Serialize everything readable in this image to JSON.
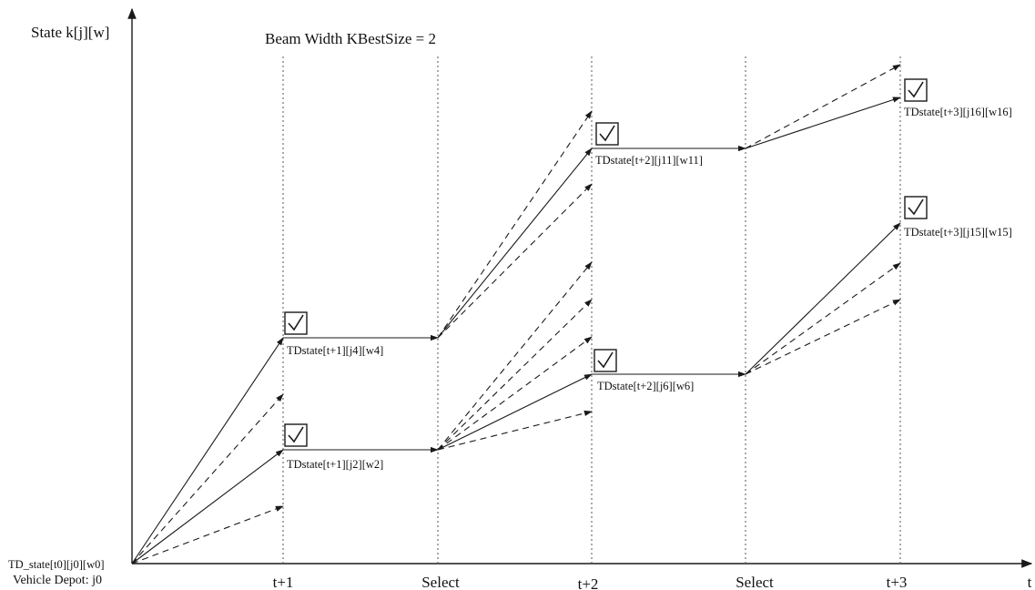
{
  "axes": {
    "y_label": "State k[j][w]",
    "x_label": "t",
    "ticks": [
      "t+1",
      "Select",
      "t+2",
      "Select",
      "t+3"
    ]
  },
  "title": "Beam Width KBestSize = 2",
  "origin": {
    "state_label": "TD_state[t0][j0][w0]",
    "depot_label": "Vehicle Depot: j0"
  },
  "states": {
    "s_t1_j4": "TDstate[t+1][j4][w4]",
    "s_t1_j2": "TDstate[t+1][j2][w2]",
    "s_t2_j11": "TDstate[t+2][j11][w11]",
    "s_t2_j6": "TDstate[t+2][j6][w6]",
    "s_t3_j16": "TDstate[t+3][j16][w16]",
    "s_t3_j15": "TDstate[t+3][j15][w15]"
  },
  "selected_marker": "check-icon",
  "colors": {
    "line": "#1a1a1a",
    "text": "#111111"
  }
}
